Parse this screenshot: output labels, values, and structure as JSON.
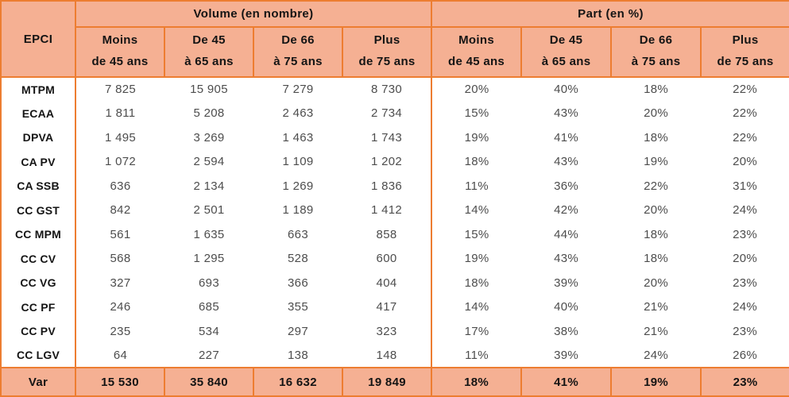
{
  "colors": {
    "header_bg": "#F5B093",
    "border": "#ED7D31",
    "value_text": "#4D4D4D",
    "label_text": "#141414"
  },
  "table": {
    "corner_header": "EPCI",
    "group_headers": [
      {
        "label": "Volume (en nombre)"
      },
      {
        "label": "Part (en %)"
      }
    ],
    "age_columns": [
      {
        "line1": "Moins",
        "line2": "de 45 ans"
      },
      {
        "line1": "De 45",
        "line2": "à 65 ans"
      },
      {
        "line1": "De 66",
        "line2": "à 75 ans"
      },
      {
        "line1": "Plus",
        "line2": "de 75 ans"
      }
    ],
    "rows": [
      {
        "label": "MTPM",
        "volume": [
          "7 825",
          "15 905",
          "7 279",
          "8 730"
        ],
        "part": [
          "20%",
          "40%",
          "18%",
          "22%"
        ]
      },
      {
        "label": "ECAA",
        "volume": [
          "1 811",
          "5 208",
          "2 463",
          "2 734"
        ],
        "part": [
          "15%",
          "43%",
          "20%",
          "22%"
        ]
      },
      {
        "label": "DPVA",
        "volume": [
          "1 495",
          "3 269",
          "1 463",
          "1 743"
        ],
        "part": [
          "19%",
          "41%",
          "18%",
          "22%"
        ]
      },
      {
        "label": "CA PV",
        "volume": [
          "1 072",
          "2 594",
          "1 109",
          "1 202"
        ],
        "part": [
          "18%",
          "43%",
          "19%",
          "20%"
        ]
      },
      {
        "label": "CA SSB",
        "volume": [
          "636",
          "2 134",
          "1 269",
          "1 836"
        ],
        "part": [
          "11%",
          "36%",
          "22%",
          "31%"
        ]
      },
      {
        "label": "CC GST",
        "volume": [
          "842",
          "2 501",
          "1 189",
          "1 412"
        ],
        "part": [
          "14%",
          "42%",
          "20%",
          "24%"
        ]
      },
      {
        "label": "CC MPM",
        "volume": [
          "561",
          "1 635",
          "663",
          "858"
        ],
        "part": [
          "15%",
          "44%",
          "18%",
          "23%"
        ]
      },
      {
        "label": "CC CV",
        "volume": [
          "568",
          "1 295",
          "528",
          "600"
        ],
        "part": [
          "19%",
          "43%",
          "18%",
          "20%"
        ]
      },
      {
        "label": "CC VG",
        "volume": [
          "327",
          "693",
          "366",
          "404"
        ],
        "part": [
          "18%",
          "39%",
          "20%",
          "23%"
        ]
      },
      {
        "label": "CC PF",
        "volume": [
          "246",
          "685",
          "355",
          "417"
        ],
        "part": [
          "14%",
          "40%",
          "21%",
          "24%"
        ]
      },
      {
        "label": "CC PV",
        "volume": [
          "235",
          "534",
          "297",
          "323"
        ],
        "part": [
          "17%",
          "38%",
          "21%",
          "23%"
        ]
      },
      {
        "label": "CC LGV",
        "volume": [
          "64",
          "227",
          "138",
          "148"
        ],
        "part": [
          "11%",
          "39%",
          "24%",
          "26%"
        ]
      }
    ],
    "total_row": {
      "label": "Var",
      "volume": [
        "15 530",
        "35 840",
        "16 632",
        "19 849"
      ],
      "part": [
        "18%",
        "41%",
        "19%",
        "23%"
      ]
    }
  },
  "chart_data": {
    "type": "table",
    "title": "",
    "categories": [
      "MTPM",
      "ECAA",
      "DPVA",
      "CA PV",
      "CA SSB",
      "CC GST",
      "CC MPM",
      "CC CV",
      "CC VG",
      "CC PF",
      "CC PV",
      "CC LGV"
    ],
    "series": [
      {
        "name": "Volume - Moins de 45 ans",
        "values": [
          7825,
          1811,
          1495,
          1072,
          636,
          842,
          561,
          568,
          327,
          246,
          235,
          64
        ]
      },
      {
        "name": "Volume - De 45 à 65 ans",
        "values": [
          15905,
          5208,
          3269,
          2594,
          2134,
          2501,
          1635,
          1295,
          693,
          685,
          534,
          227
        ]
      },
      {
        "name": "Volume - De 66 à 75 ans",
        "values": [
          7279,
          2463,
          1463,
          1109,
          1269,
          1189,
          663,
          528,
          366,
          355,
          297,
          138
        ]
      },
      {
        "name": "Volume - Plus de 75 ans",
        "values": [
          8730,
          2734,
          1743,
          1202,
          1836,
          1412,
          858,
          600,
          404,
          417,
          323,
          148
        ]
      },
      {
        "name": "Part (%) - Moins de 45 ans",
        "values": [
          20,
          15,
          19,
          18,
          11,
          14,
          15,
          19,
          18,
          14,
          17,
          11
        ]
      },
      {
        "name": "Part (%) - De 45 à 65 ans",
        "values": [
          40,
          43,
          41,
          43,
          36,
          42,
          44,
          43,
          39,
          40,
          38,
          39
        ]
      },
      {
        "name": "Part (%) - De 66 à 75 ans",
        "values": [
          18,
          20,
          18,
          19,
          22,
          20,
          18,
          18,
          20,
          21,
          21,
          24
        ]
      },
      {
        "name": "Part (%) - Plus de 75 ans",
        "values": [
          22,
          22,
          22,
          20,
          31,
          24,
          23,
          20,
          23,
          24,
          23,
          26
        ]
      }
    ],
    "totals": {
      "label": "Var",
      "volume": [
        15530,
        35840,
        16632,
        19849
      ],
      "part_pct": [
        18,
        41,
        19,
        23
      ]
    },
    "layout": {
      "grid": "header-and-total-rows-shaded",
      "header_bg": "#F5B093",
      "border_color": "#ED7D31"
    }
  }
}
